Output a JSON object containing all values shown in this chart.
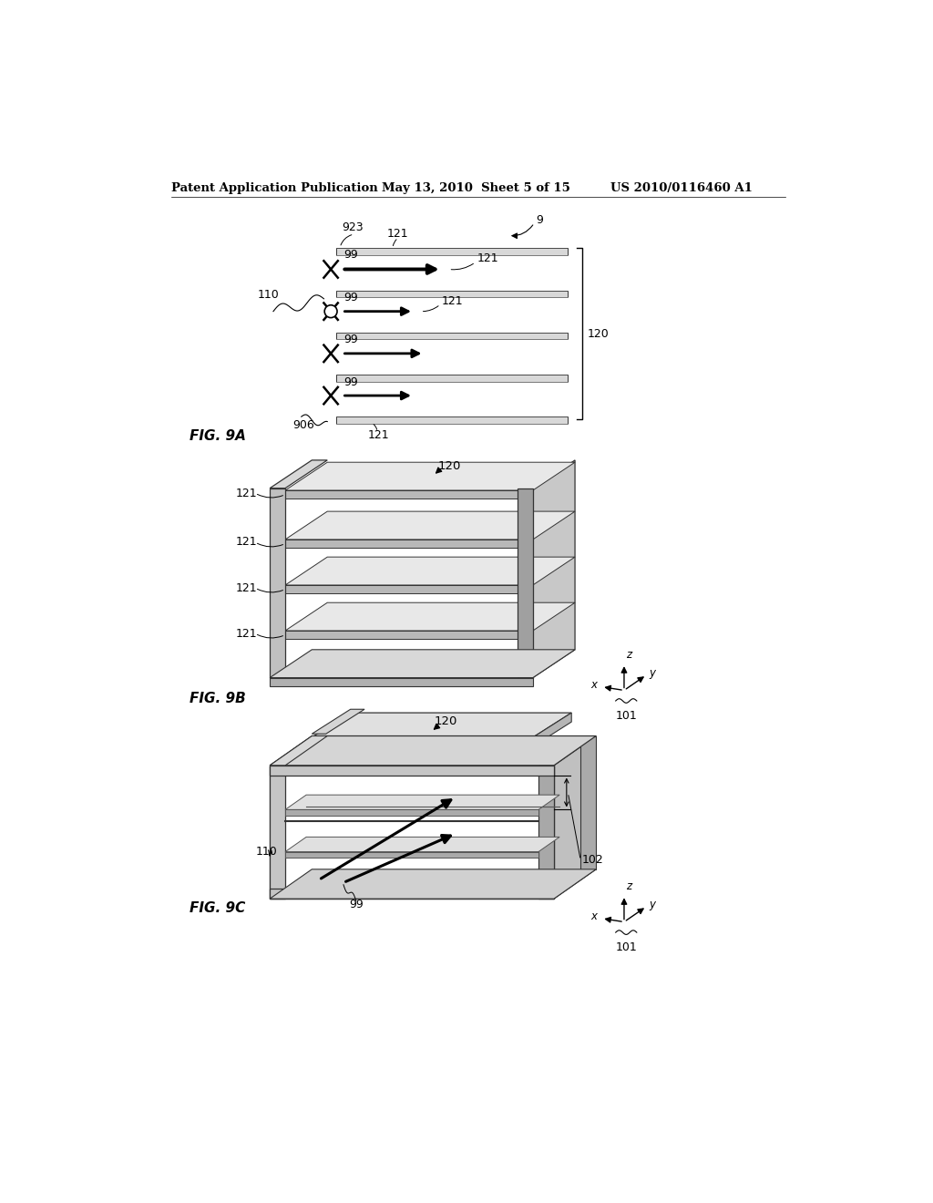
{
  "header_left": "Patent Application Publication",
  "header_mid": "May 13, 2010  Sheet 5 of 15",
  "header_right": "US 2010/0116460 A1",
  "fig9a_label": "FIG. 9A",
  "fig9b_label": "FIG. 9B",
  "fig9c_label": "FIG. 9C",
  "bg_color": "#ffffff",
  "lc": "#000000",
  "plate_top_color": "#e8e8e8",
  "plate_front_color": "#aaaaaa",
  "shelf_top_color": "#e0e0e0",
  "shelf_side_color": "#b8b8b8",
  "col_color": "#c8c8c8",
  "col_side_color": "#999999",
  "frame_color": "#cccccc",
  "frame_side_color": "#aaaaaa"
}
